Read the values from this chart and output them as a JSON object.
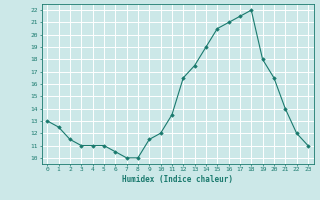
{
  "xlabel": "Humidex (Indice chaleur)",
  "x": [
    0,
    1,
    2,
    3,
    4,
    5,
    6,
    7,
    8,
    9,
    10,
    11,
    12,
    13,
    14,
    15,
    16,
    17,
    18,
    19,
    20,
    21,
    22,
    23
  ],
  "y": [
    13,
    12.5,
    11.5,
    11,
    11,
    11,
    10.5,
    10,
    10,
    11.5,
    12,
    13.5,
    16.5,
    17.5,
    19,
    20.5,
    21,
    21.5,
    22,
    18,
    16.5,
    14,
    12,
    11
  ],
  "line_color": "#1a7a6e",
  "marker_color": "#1a7a6e",
  "bg_color": "#cce8e8",
  "grid_color": "#ffffff",
  "axis_color": "#1a7a6e",
  "tick_label_color": "#1a7a6e",
  "ylim": [
    9.5,
    22.5
  ],
  "xlim": [
    -0.5,
    23.5
  ],
  "yticks": [
    10,
    11,
    12,
    13,
    14,
    15,
    16,
    17,
    18,
    19,
    20,
    21,
    22
  ]
}
